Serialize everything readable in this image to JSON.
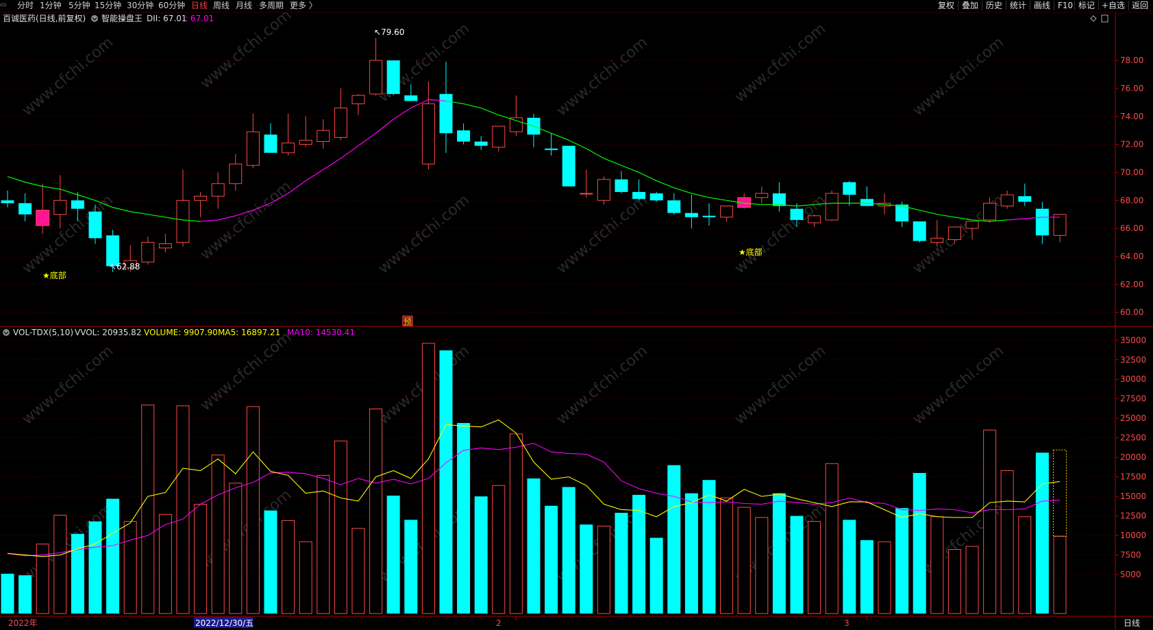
{
  "toolbar": {
    "left_items": [
      "分时",
      "1分钟",
      "5分钟",
      "15分钟",
      "30分钟",
      "60分钟",
      "日线",
      "周线",
      "月线",
      "多周期",
      "更多 〉"
    ],
    "active_item": "日线",
    "right_items": [
      "复权",
      "叠加",
      "历史",
      "统计",
      "画线",
      "F10",
      "标记",
      "+自选",
      "返回"
    ]
  },
  "price_header": {
    "stock": "百诚医药(日线,前复权)",
    "indicator": "智能操盘王",
    "dii_label": "DII: 67.01",
    "dii_value": ": 67.01"
  },
  "volume_header": {
    "name": "VOL-TDX(5,10)",
    "vvol": "VVOL: 20935.82",
    "volume": "VOLUME: 9907.90",
    "ma5": "MA5: 16897.21",
    "ma10": "MA10: 14530.41"
  },
  "annotations": {
    "high": "79.60",
    "low": "62.88",
    "bottom_signal": "★底部",
    "pre_marker": "预",
    "watermark": "www.cfchi.com"
  },
  "date_axis": {
    "labels": [
      "2022年",
      "2022/12/30/五",
      "2",
      "3"
    ],
    "period": "日线"
  },
  "colors": {
    "up": "#ff4a4a",
    "down": "#00ffff",
    "highlight": "#ff1493",
    "ma_up": "#00ff00",
    "ma_down": "#ff00ff",
    "vol_ma5": "#ffff00",
    "vol_ma10": "#ff00ff",
    "axis": "#b00000",
    "label_yellow": "#ffff00"
  },
  "chart_data": [
    {
      "type": "candlestick",
      "y_ticks": [
        "60.00",
        "62.00",
        "64.00",
        "66.00",
        "68.00",
        "70.00",
        "72.00",
        "74.00",
        "76.00",
        "78.00"
      ],
      "ylim": [
        59.2,
        80.6
      ],
      "candles": [
        {
          "o": 68.0,
          "h": 68.7,
          "l": 67.5,
          "c": 67.8
        },
        {
          "o": 67.8,
          "h": 68.5,
          "l": 66.5,
          "c": 67.0
        },
        {
          "o": 66.2,
          "h": 69.2,
          "l": 65.6,
          "c": 67.3
        },
        {
          "o": 67.0,
          "h": 69.8,
          "l": 66.0,
          "c": 68.0
        },
        {
          "o": 68.0,
          "h": 68.6,
          "l": 66.5,
          "c": 67.4
        },
        {
          "o": 67.2,
          "h": 67.7,
          "l": 64.9,
          "c": 65.3
        },
        {
          "o": 65.5,
          "h": 65.9,
          "l": 62.88,
          "c": 63.3
        },
        {
          "o": 63.2,
          "h": 64.8,
          "l": 62.9,
          "c": 63.7
        },
        {
          "o": 63.6,
          "h": 65.4,
          "l": 63.4,
          "c": 65.0
        },
        {
          "o": 64.6,
          "h": 65.6,
          "l": 64.3,
          "c": 64.9
        },
        {
          "o": 65.0,
          "h": 70.2,
          "l": 64.7,
          "c": 68.0
        },
        {
          "o": 68.0,
          "h": 68.6,
          "l": 66.8,
          "c": 68.3
        },
        {
          "o": 68.3,
          "h": 70.0,
          "l": 67.4,
          "c": 69.2
        },
        {
          "o": 69.2,
          "h": 71.3,
          "l": 68.7,
          "c": 70.6
        },
        {
          "o": 70.5,
          "h": 74.2,
          "l": 70.3,
          "c": 72.9
        },
        {
          "o": 72.7,
          "h": 73.5,
          "l": 71.4,
          "c": 71.4
        },
        {
          "o": 71.4,
          "h": 74.2,
          "l": 71.2,
          "c": 72.1
        },
        {
          "o": 72.0,
          "h": 74.0,
          "l": 71.8,
          "c": 72.3
        },
        {
          "o": 72.2,
          "h": 73.8,
          "l": 71.7,
          "c": 73.0
        },
        {
          "o": 72.5,
          "h": 76.0,
          "l": 72.3,
          "c": 74.6
        },
        {
          "o": 74.9,
          "h": 75.6,
          "l": 74.1,
          "c": 75.5
        },
        {
          "o": 75.6,
          "h": 79.6,
          "l": 75.5,
          "c": 78.0
        },
        {
          "o": 78.0,
          "h": 78.0,
          "l": 75.5,
          "c": 75.6
        },
        {
          "o": 75.5,
          "h": 76.3,
          "l": 75.1,
          "c": 75.1
        },
        {
          "o": 70.6,
          "h": 76.5,
          "l": 70.2,
          "c": 74.9
        },
        {
          "o": 75.6,
          "h": 77.9,
          "l": 71.4,
          "c": 72.8
        },
        {
          "o": 73.0,
          "h": 73.5,
          "l": 72.0,
          "c": 72.2
        },
        {
          "o": 72.2,
          "h": 72.6,
          "l": 71.6,
          "c": 71.9
        },
        {
          "o": 71.8,
          "h": 73.3,
          "l": 71.5,
          "c": 73.3
        },
        {
          "o": 72.9,
          "h": 75.5,
          "l": 72.6,
          "c": 73.9
        },
        {
          "o": 73.9,
          "h": 74.2,
          "l": 71.8,
          "c": 72.7
        },
        {
          "o": 71.7,
          "h": 72.8,
          "l": 71.2,
          "c": 71.6
        },
        {
          "o": 71.9,
          "h": 71.9,
          "l": 69.0,
          "c": 69.0
        },
        {
          "o": 68.5,
          "h": 70.2,
          "l": 68.2,
          "c": 68.5
        },
        {
          "o": 68.0,
          "h": 69.7,
          "l": 67.7,
          "c": 69.5
        },
        {
          "o": 69.5,
          "h": 70.1,
          "l": 68.5,
          "c": 68.6
        },
        {
          "o": 68.6,
          "h": 69.5,
          "l": 68.0,
          "c": 68.1
        },
        {
          "o": 68.5,
          "h": 68.6,
          "l": 67.9,
          "c": 68.0
        },
        {
          "o": 68.0,
          "h": 68.5,
          "l": 67.0,
          "c": 67.1
        },
        {
          "o": 67.1,
          "h": 68.4,
          "l": 66.0,
          "c": 66.8
        },
        {
          "o": 66.9,
          "h": 67.8,
          "l": 66.2,
          "c": 66.8
        },
        {
          "o": 66.8,
          "h": 67.6,
          "l": 66.5,
          "c": 67.6
        },
        {
          "o": 67.5,
          "h": 68.5,
          "l": 67.4,
          "c": 68.2
        },
        {
          "o": 68.2,
          "h": 69.0,
          "l": 67.8,
          "c": 68.5
        },
        {
          "o": 68.5,
          "h": 69.3,
          "l": 67.2,
          "c": 67.6
        },
        {
          "o": 67.4,
          "h": 67.8,
          "l": 66.1,
          "c": 66.6
        },
        {
          "o": 66.4,
          "h": 67.0,
          "l": 66.1,
          "c": 66.9
        },
        {
          "o": 66.6,
          "h": 68.7,
          "l": 66.5,
          "c": 68.5
        },
        {
          "o": 69.3,
          "h": 69.4,
          "l": 67.6,
          "c": 68.4
        },
        {
          "o": 68.1,
          "h": 69.0,
          "l": 67.8,
          "c": 67.6
        },
        {
          "o": 67.6,
          "h": 68.5,
          "l": 67.0,
          "c": 67.8
        },
        {
          "o": 67.7,
          "h": 67.9,
          "l": 66.1,
          "c": 66.5
        },
        {
          "o": 66.5,
          "h": 66.5,
          "l": 65.0,
          "c": 65.1
        },
        {
          "o": 65.0,
          "h": 66.6,
          "l": 64.7,
          "c": 65.3
        },
        {
          "o": 65.2,
          "h": 66.0,
          "l": 64.9,
          "c": 66.1
        },
        {
          "o": 66.0,
          "h": 66.5,
          "l": 65.2,
          "c": 66.5
        },
        {
          "o": 66.6,
          "h": 68.2,
          "l": 66.4,
          "c": 67.8
        },
        {
          "o": 67.6,
          "h": 68.7,
          "l": 67.4,
          "c": 68.4
        },
        {
          "o": 68.3,
          "h": 69.2,
          "l": 67.6,
          "c": 67.9
        },
        {
          "o": 67.4,
          "h": 67.9,
          "l": 64.9,
          "c": 65.5
        },
        {
          "o": 65.5,
          "h": 67.0,
          "l": 65.0,
          "c": 67.0
        }
      ],
      "highlight_indices": [
        2,
        42
      ],
      "ma": [
        69.7,
        69.3,
        69.0,
        68.8,
        68.4,
        68.0,
        67.5,
        67.2,
        67.0,
        66.8,
        66.6,
        66.5,
        66.6,
        66.9,
        67.3,
        67.8,
        68.5,
        69.4,
        70.2,
        71.0,
        71.9,
        72.8,
        73.8,
        74.6,
        75.2,
        75.1,
        74.9,
        74.6,
        74.1,
        73.7,
        73.3,
        72.8,
        72.3,
        71.7,
        71.0,
        70.5,
        70.0,
        69.4,
        68.9,
        68.5,
        68.2,
        68.0,
        67.8,
        67.7,
        67.7,
        67.6,
        67.7,
        67.8,
        67.8,
        67.8,
        67.7,
        67.6,
        67.3,
        67.0,
        66.8,
        66.6,
        66.5,
        66.6,
        66.7,
        66.8,
        66.8
      ],
      "ma_green_ranges": [
        [
          0,
          11
        ],
        [
          25,
          57
        ]
      ]
    },
    {
      "type": "bar",
      "y_ticks": [
        "5000",
        "7500",
        "10000",
        "12500",
        "15000",
        "17500",
        "20000",
        "22500",
        "25000",
        "27500",
        "30000",
        "32500",
        "35000"
      ],
      "ylim": [
        0,
        35200
      ],
      "values": [
        5100,
        4900,
        8900,
        12600,
        10200,
        11800,
        14700,
        11800,
        26700,
        12700,
        26600,
        14000,
        20300,
        16700,
        26500,
        13200,
        11900,
        9200,
        17700,
        22100,
        10900,
        26200,
        15100,
        12000,
        34600,
        33700,
        24400,
        15000,
        16400,
        23000,
        17300,
        13800,
        16200,
        11400,
        11200,
        12900,
        15200,
        9700,
        19000,
        15400,
        17100,
        14800,
        13600,
        12300,
        15400,
        12500,
        11800,
        19200,
        12000,
        9400,
        9200,
        13500,
        18000,
        12400,
        8200,
        8600,
        23500,
        18300,
        12400,
        20600,
        9900
      ],
      "down_indices": [
        0,
        1,
        4,
        5,
        6,
        15,
        22,
        23,
        25,
        26,
        27,
        30,
        31,
        32,
        33,
        35,
        36,
        37,
        38,
        39,
        40,
        44,
        45,
        48,
        49,
        51,
        52,
        59
      ],
      "ma5": [
        7700,
        7500,
        7300,
        7500,
        8300,
        8900,
        10300,
        11600,
        15000,
        15500,
        18600,
        18300,
        19800,
        17900,
        20700,
        18200,
        17700,
        15400,
        15700,
        14800,
        14400,
        17500,
        18300,
        17300,
        19800,
        24200,
        24000,
        23900,
        24800,
        23100,
        19400,
        17200,
        17500,
        16400,
        14000,
        13300,
        13200,
        12400,
        13700,
        14200,
        15200,
        14400,
        15900,
        15000,
        15300,
        14700,
        14200,
        13700,
        14300,
        14300,
        13300,
        12300,
        12800,
        12400,
        12300,
        12300,
        14200,
        14400,
        14300,
        16600,
        16900
      ],
      "ma10": [
        7700,
        7400,
        7500,
        7800,
        8200,
        8500,
        8700,
        9400,
        10000,
        11400,
        12100,
        14000,
        15200,
        16100,
        16800,
        18000,
        18100,
        17900,
        17300,
        16500,
        17300,
        16700,
        17200,
        16600,
        17300,
        19300,
        20900,
        21200,
        21000,
        21300,
        21800,
        20700,
        20500,
        20400,
        19400,
        17000,
        16000,
        15400,
        15000,
        14300,
        14200,
        14300,
        14100,
        14000,
        14400,
        14200,
        14000,
        14200,
        14800,
        14200,
        14100,
        13300,
        13200,
        13400,
        13300,
        12900,
        13300,
        13300,
        13400,
        14400,
        14500
      ]
    }
  ]
}
